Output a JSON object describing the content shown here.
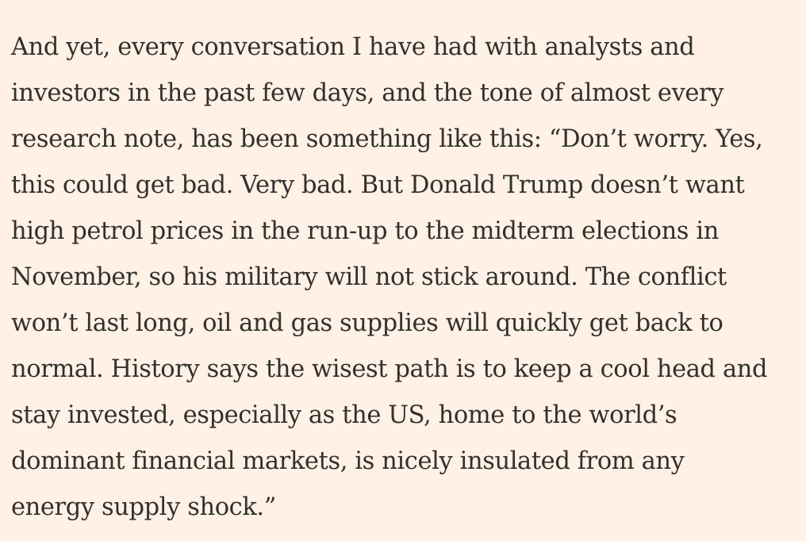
{
  "article": {
    "paragraph_lines": [
      "And yet, every conversation I have had with analysts and",
      "investors in the past few days, and the tone of almost every",
      "research note, has been something like this: “Don’t worry. Yes,",
      "this could get bad. Very bad. But Donald Trump doesn’t want",
      "high petrol prices in the run-up to the midterm elections in",
      "November, so his military will not stick around. The conflict",
      "won’t last long, oil and gas supplies will quickly get back to",
      "normal. History says the wisest path is to keep a cool head and",
      "stay invested, especially as the US, home to the world’s",
      "dominant financial markets, is nicely insulated from any",
      "energy supply shock.”"
    ]
  },
  "colors": {
    "background": "#fff1e5",
    "text": "#33302e"
  }
}
